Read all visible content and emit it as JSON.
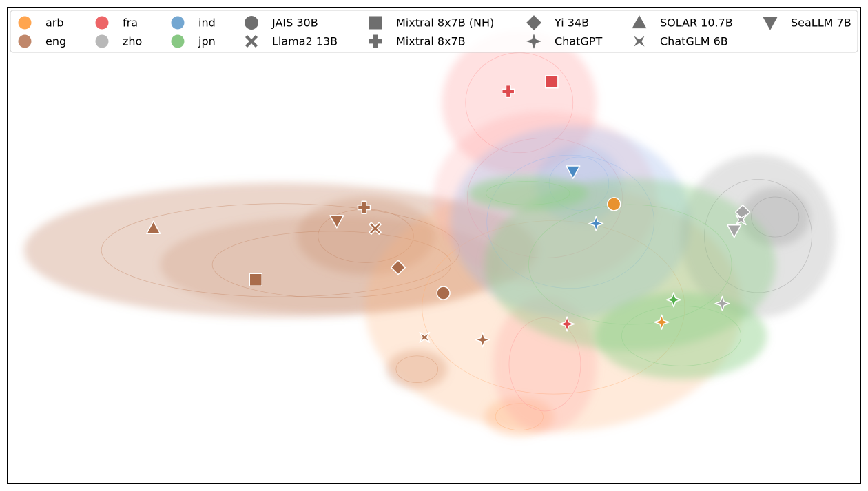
{
  "chart_data": {
    "type": "scatter",
    "title": "",
    "xlabel": "",
    "ylabel": "",
    "grid": false,
    "axes_ticks": false,
    "legend_placement": "top",
    "xlim": [
      0,
      100
    ],
    "ylim": [
      0,
      100
    ],
    "languages": [
      {
        "code": "arb",
        "color": "#ffa54f"
      },
      {
        "code": "eng",
        "color": "#c0876a"
      },
      {
        "code": "fra",
        "color": "#ed6567"
      },
      {
        "code": "zho",
        "color": "#b8b8b8"
      },
      {
        "code": "ind",
        "color": "#74a7d1"
      },
      {
        "code": "jpn",
        "color": "#88c883"
      }
    ],
    "models": [
      {
        "name": "JAIS 30B",
        "marker": "circle"
      },
      {
        "name": "Llama2 13B",
        "marker": "x"
      },
      {
        "name": "Mixtral 8x7B (NH)",
        "marker": "square"
      },
      {
        "name": "Mixtral 8x7B",
        "marker": "plus"
      },
      {
        "name": "Yi 34B",
        "marker": "diamond"
      },
      {
        "name": "ChatGPT",
        "marker": "star4"
      },
      {
        "name": "SOLAR 10.7B",
        "marker": "triangle-up"
      },
      {
        "name": "ChatGLM 6B",
        "marker": "bowtie"
      },
      {
        "name": "SeaLLM 7B",
        "marker": "triangle-down"
      }
    ],
    "point_colors": {
      "arb": "#e8922f",
      "eng": "#a96c4b",
      "fra": "#de4a4e",
      "zho": "#a6a6a6",
      "ind": "#4a8ac4",
      "jpn": "#52b04c"
    },
    "density_colors": {
      "arb": "#ffb27a",
      "eng": "#c68a6a",
      "fra": "#ff9c9c",
      "zho": "#9a9a9a",
      "ind": "#9ab8ec",
      "jpn": "#8fd08a"
    },
    "points": [
      {
        "lang": "eng",
        "model": "SOLAR 10.7B",
        "x": 17.1,
        "y": 53.6
      },
      {
        "lang": "eng",
        "model": "Mixtral 8x7B (NH)",
        "x": 29.1,
        "y": 42.8
      },
      {
        "lang": "eng",
        "model": "SeaLLM 7B",
        "x": 38.6,
        "y": 55.2
      },
      {
        "lang": "eng",
        "model": "Mixtral 8x7B",
        "x": 41.8,
        "y": 58.0
      },
      {
        "lang": "eng",
        "model": "Llama2 13B",
        "x": 43.1,
        "y": 53.6
      },
      {
        "lang": "eng",
        "model": "Yi 34B",
        "x": 45.8,
        "y": 45.4
      },
      {
        "lang": "eng",
        "model": "JAIS 30B",
        "x": 51.1,
        "y": 40.0
      },
      {
        "lang": "eng",
        "model": "ChatGLM 6B",
        "x": 48.9,
        "y": 30.7
      },
      {
        "lang": "eng",
        "model": "ChatGPT",
        "x": 55.7,
        "y": 30.2
      },
      {
        "lang": "fra",
        "model": "Mixtral 8x7B",
        "x": 58.7,
        "y": 82.4
      },
      {
        "lang": "fra",
        "model": "Mixtral 8x7B (NH)",
        "x": 63.8,
        "y": 84.4
      },
      {
        "lang": "fra",
        "model": "ChatGPT",
        "x": 65.6,
        "y": 33.5
      },
      {
        "lang": "ind",
        "model": "SeaLLM 7B",
        "x": 66.3,
        "y": 65.6
      },
      {
        "lang": "ind",
        "model": "ChatGPT",
        "x": 69.0,
        "y": 54.6
      },
      {
        "lang": "arb",
        "model": "JAIS 30B",
        "x": 71.1,
        "y": 58.7
      },
      {
        "lang": "jpn",
        "model": "ChatGPT",
        "x": 78.1,
        "y": 38.6
      },
      {
        "lang": "arb",
        "model": "ChatGPT",
        "x": 76.7,
        "y": 33.9
      },
      {
        "lang": "zho",
        "model": "Yi 34B",
        "x": 86.2,
        "y": 57.0
      },
      {
        "lang": "zho",
        "model": "ChatGLM 6B",
        "x": 86.0,
        "y": 55.4
      },
      {
        "lang": "zho",
        "model": "SeaLLM 7B",
        "x": 85.2,
        "y": 53.2
      },
      {
        "lang": "zho",
        "model": "ChatGPT",
        "x": 83.8,
        "y": 37.8
      }
    ],
    "density_regions": [
      {
        "lang": "eng",
        "cx": 32,
        "cy": 49,
        "rx": 30,
        "ry": 14,
        "opacity": 0.35
      },
      {
        "lang": "eng",
        "cx": 38,
        "cy": 46,
        "rx": 20,
        "ry": 10,
        "opacity": 0.25
      },
      {
        "lang": "eng",
        "cx": 42,
        "cy": 52,
        "rx": 8,
        "ry": 8,
        "opacity": 0.3
      },
      {
        "lang": "eng",
        "cx": 48,
        "cy": 24,
        "rx": 3.5,
        "ry": 4,
        "opacity": 0.35
      },
      {
        "lang": "arb",
        "cx": 64,
        "cy": 37,
        "rx": 22,
        "ry": 26,
        "opacity": 0.28
      },
      {
        "lang": "arb",
        "cx": 60,
        "cy": 14,
        "rx": 4,
        "ry": 4,
        "opacity": 0.35
      },
      {
        "lang": "fra",
        "cx": 60,
        "cy": 80,
        "rx": 9,
        "ry": 15,
        "opacity": 0.3
      },
      {
        "lang": "fra",
        "cx": 63,
        "cy": 60,
        "rx": 13,
        "ry": 18,
        "opacity": 0.22
      },
      {
        "lang": "fra",
        "cx": 63,
        "cy": 25,
        "rx": 6,
        "ry": 14,
        "opacity": 0.25
      },
      {
        "lang": "ind",
        "cx": 66,
        "cy": 55,
        "rx": 14,
        "ry": 20,
        "opacity": 0.32
      },
      {
        "lang": "ind",
        "cx": 67,
        "cy": 63,
        "rx": 5,
        "ry": 8,
        "opacity": 0.3
      },
      {
        "lang": "zho",
        "cx": 88,
        "cy": 52,
        "rx": 9,
        "ry": 17,
        "opacity": 0.28
      },
      {
        "lang": "zho",
        "cx": 90,
        "cy": 56,
        "rx": 4,
        "ry": 6,
        "opacity": 0.35
      },
      {
        "lang": "jpn",
        "cx": 73,
        "cy": 46,
        "rx": 17,
        "ry": 18,
        "opacity": 0.4
      },
      {
        "lang": "jpn",
        "cx": 61,
        "cy": 61,
        "rx": 7,
        "ry": 3.5,
        "opacity": 0.55
      },
      {
        "lang": "jpn",
        "cx": 79,
        "cy": 31,
        "rx": 10,
        "ry": 9,
        "opacity": 0.45
      }
    ]
  }
}
